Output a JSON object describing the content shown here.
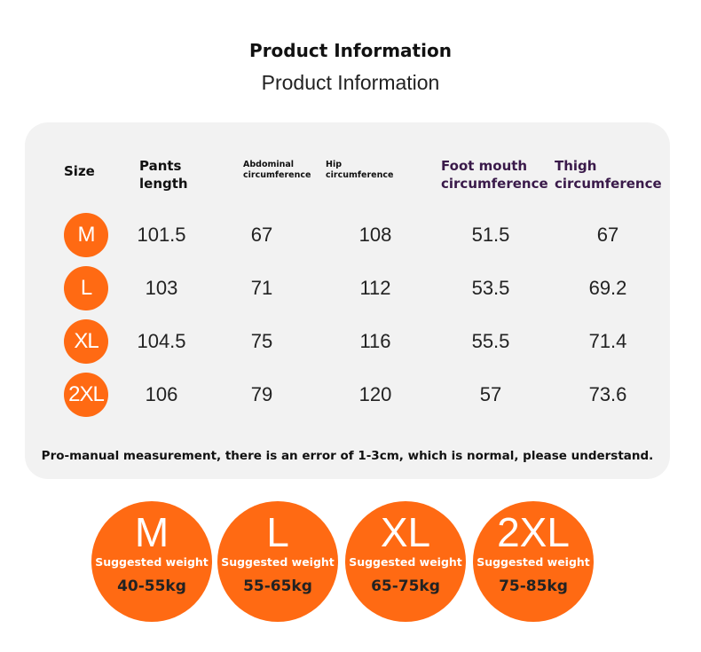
{
  "header": {
    "title": "Product Information",
    "subtitle": "Product Information"
  },
  "table": {
    "headers": [
      "Size",
      "Pants length",
      "Abdominal circumference",
      "Hip circumference",
      "Foot mouth circumference",
      "Thigh circumference"
    ],
    "rows": [
      [
        "M",
        "101.5",
        "67",
        "108",
        "51.5",
        "67"
      ],
      [
        "L",
        "103",
        "71",
        "112",
        "53.5",
        "69.2"
      ],
      [
        "XL",
        "104.5",
        "75",
        "116",
        "55.5",
        "71.4"
      ],
      [
        "2XL",
        "106",
        "79",
        "120",
        "57",
        "73.6"
      ]
    ],
    "note": "Pro-manual measurement, there is an error of 1-3cm, which is normal, please understand."
  },
  "weights": [
    {
      "size": "M",
      "label": "Suggested weight",
      "range": "40-55kg"
    },
    {
      "size": "L",
      "label": "Suggested weight",
      "range": "55-65kg"
    },
    {
      "size": "XL",
      "label": "Suggested weight",
      "range": "65-75kg"
    },
    {
      "size": "2XL",
      "label": "Suggested weight",
      "range": "75-85kg"
    }
  ]
}
